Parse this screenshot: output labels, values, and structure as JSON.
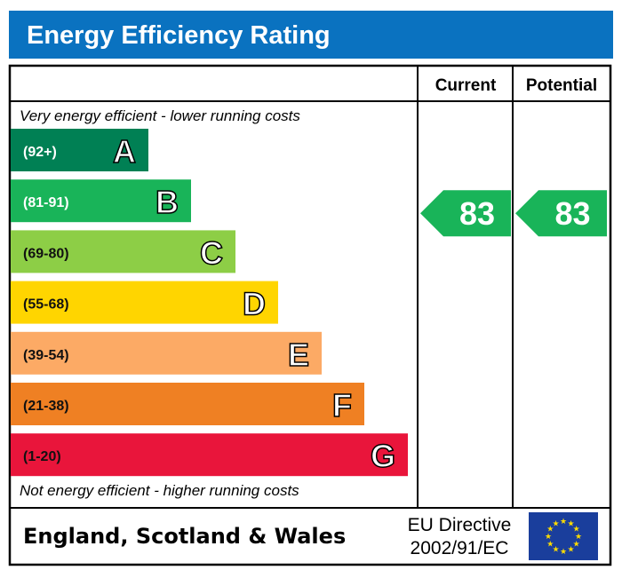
{
  "title": "Energy Efficiency Rating",
  "headers": {
    "current": "Current",
    "potential": "Potential"
  },
  "top_note": "Very energy efficient - lower running costs",
  "bottom_note": "Not energy efficient - higher running costs",
  "footer": {
    "region": "England, Scotland & Wales",
    "directive_line1": "EU Directive",
    "directive_line2": "2002/91/EC",
    "flag_icon": "eu-flag-icon"
  },
  "colors": {
    "title_bg": "#0a72c0",
    "arrow": "#19b459"
  },
  "chart_data": {
    "type": "bar",
    "categories": [
      "A",
      "B",
      "C",
      "D",
      "E",
      "F",
      "G"
    ],
    "ranges": [
      "(92+)",
      "(81-91)",
      "(69-80)",
      "(55-68)",
      "(39-54)",
      "(21-38)",
      "(1-20)"
    ],
    "colors": [
      "#008054",
      "#19b459",
      "#8dce46",
      "#ffd500",
      "#fcaa65",
      "#ef8023",
      "#e9153b"
    ],
    "current": 83,
    "potential": 83
  }
}
